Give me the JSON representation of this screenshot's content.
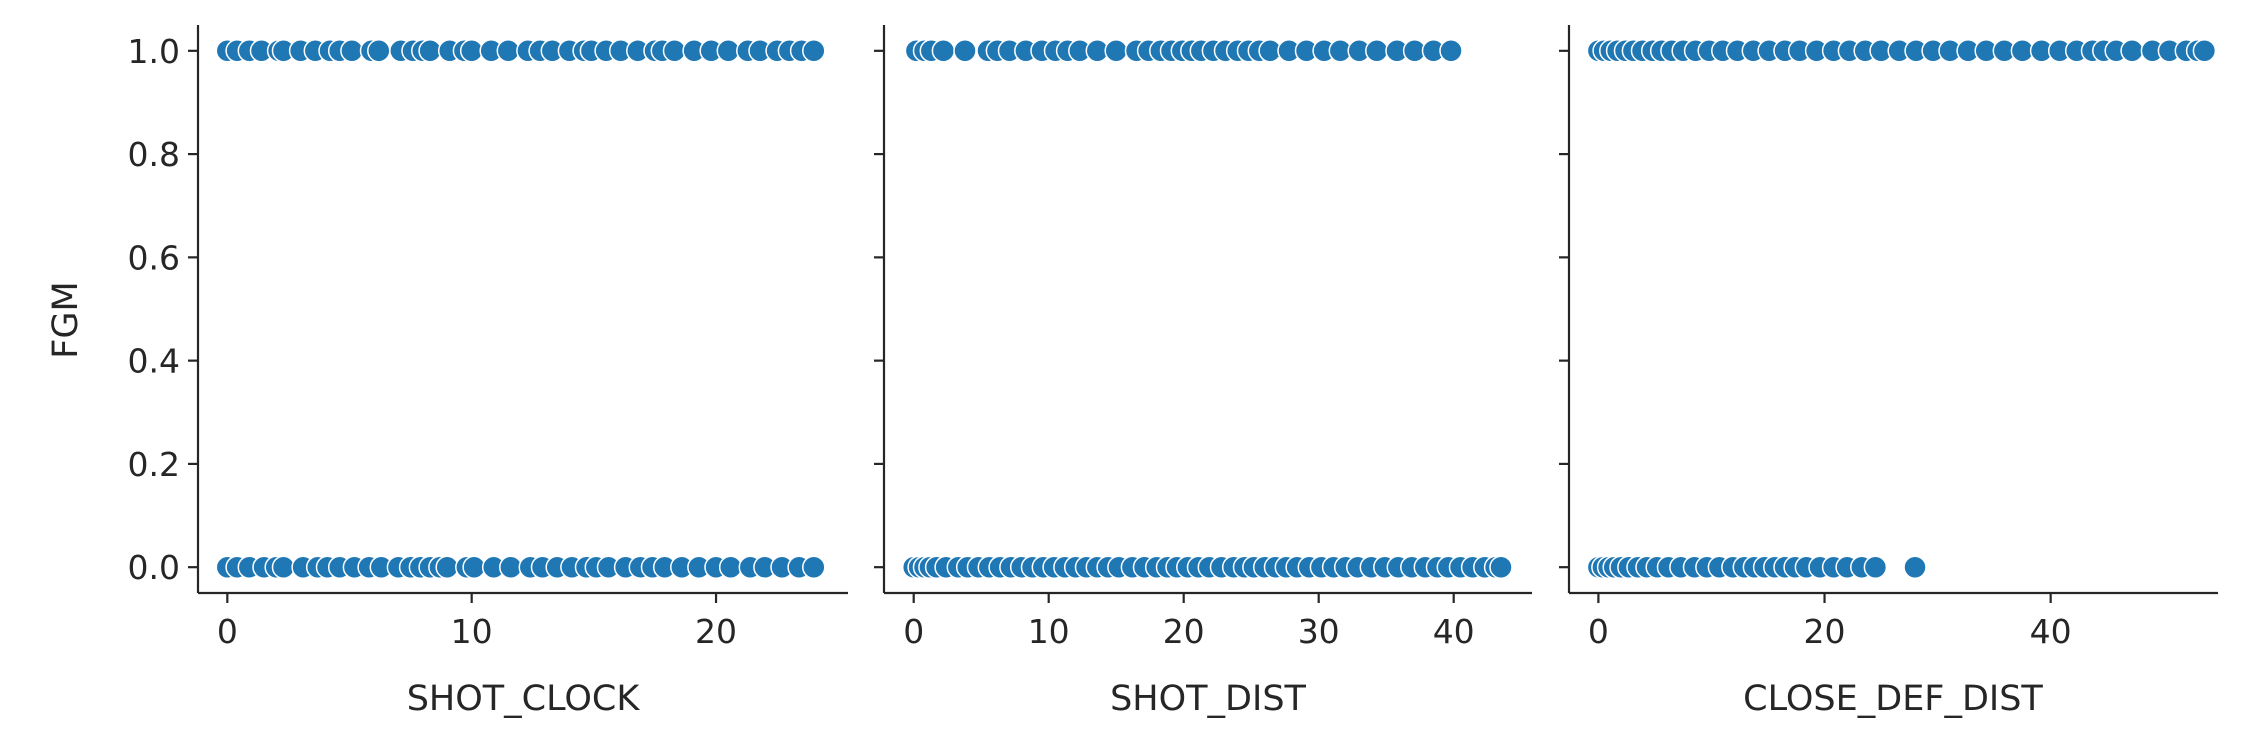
{
  "chart_data": [
    {
      "type": "scatter",
      "xlabel": "SHOT_CLOCK",
      "ylabel": "FGM",
      "xlim": [
        -1.2,
        25.4
      ],
      "ylim": [
        -0.05,
        1.05
      ],
      "xticks": [
        0,
        10,
        20
      ],
      "yticks": [
        0.0,
        0.2,
        0.4,
        0.6,
        0.8,
        1.0
      ],
      "ytick_labels": [
        "0.0",
        "0.2",
        "0.4",
        "0.6",
        "0.8",
        "1.0"
      ],
      "grid": false,
      "color": "#1f77b4",
      "points": {
        "made": [
          0.0,
          0.4,
          0.9,
          1.4,
          2.1,
          2.3,
          3.0,
          3.6,
          4.2,
          4.6,
          5.1,
          5.9,
          6.2,
          7.1,
          7.6,
          8.0,
          8.3,
          9.1,
          9.7,
          10.0,
          10.8,
          11.5,
          12.3,
          12.8,
          13.3,
          14.0,
          14.6,
          14.9,
          15.5,
          16.1,
          16.8,
          17.5,
          17.8,
          18.3,
          19.1,
          19.8,
          20.5,
          21.3,
          21.8,
          22.5,
          23.0,
          23.5,
          24.0
        ],
        "missed": [
          0.0,
          0.4,
          0.9,
          1.5,
          2.0,
          2.3,
          3.1,
          3.7,
          4.1,
          4.6,
          5.2,
          5.8,
          6.3,
          7.0,
          7.5,
          7.9,
          8.3,
          8.7,
          9.0,
          9.8,
          10.1,
          10.9,
          11.6,
          12.4,
          12.9,
          13.5,
          14.1,
          14.7,
          15.1,
          15.6,
          16.3,
          16.9,
          17.4,
          17.9,
          18.6,
          19.3,
          20.0,
          20.6,
          21.4,
          22.0,
          22.7,
          23.4,
          24.0
        ]
      }
    },
    {
      "type": "scatter",
      "xlabel": "SHOT_DIST",
      "ylabel": "",
      "xlim": [
        -2.2,
        45.8
      ],
      "ylim": [
        -0.05,
        1.05
      ],
      "xticks": [
        0,
        10,
        20,
        30,
        40
      ],
      "grid": false,
      "color": "#1f77b4",
      "points": {
        "made": [
          0.2,
          0.8,
          1.3,
          2.2,
          3.8,
          5.5,
          6.2,
          7.1,
          8.3,
          9.5,
          10.5,
          11.4,
          12.3,
          13.6,
          15.0,
          16.5,
          17.4,
          18.3,
          19.1,
          19.9,
          20.6,
          21.3,
          22.2,
          23.1,
          24.0,
          24.8,
          25.6,
          26.4,
          27.8,
          29.1,
          30.4,
          31.6,
          33.0,
          34.3,
          35.8,
          37.1,
          38.5,
          39.8
        ],
        "missed": [
          0.0,
          0.4,
          0.8,
          1.2,
          1.7,
          2.4,
          3.3,
          4.0,
          4.8,
          5.6,
          6.4,
          7.2,
          8.0,
          8.8,
          9.6,
          10.4,
          11.2,
          12.0,
          12.8,
          13.6,
          14.4,
          15.2,
          16.2,
          17.1,
          18.0,
          18.8,
          19.5,
          20.3,
          21.1,
          21.9,
          22.8,
          23.7,
          24.5,
          25.2,
          26.0,
          26.8,
          27.6,
          28.4,
          29.3,
          30.2,
          31.1,
          32.0,
          32.9,
          33.9,
          34.9,
          35.9,
          36.9,
          37.9,
          38.8,
          39.6,
          40.5,
          41.4,
          42.3,
          43.1,
          43.5
        ]
      }
    },
    {
      "type": "scatter",
      "xlabel": "CLOSE_DEF_DIST",
      "ylabel": "",
      "xlim": [
        -2.6,
        54.8
      ],
      "ylim": [
        -0.05,
        1.05
      ],
      "xticks": [
        0,
        20,
        40
      ],
      "grid": false,
      "color": "#1f77b4",
      "points": {
        "made": [
          0.0,
          0.5,
          1.1,
          1.7,
          2.4,
          3.1,
          3.9,
          4.8,
          5.6,
          6.5,
          7.5,
          8.6,
          9.8,
          11.0,
          12.3,
          13.7,
          15.1,
          16.5,
          17.8,
          19.3,
          20.8,
          22.2,
          23.6,
          25.0,
          26.6,
          28.1,
          29.6,
          31.1,
          32.7,
          34.3,
          35.9,
          37.5,
          39.2,
          40.8,
          42.3,
          43.7,
          44.7,
          45.8,
          47.2,
          49.0,
          50.5,
          52.0,
          53.0,
          53.6
        ],
        "missed": [
          0.0,
          0.4,
          0.9,
          1.4,
          2.0,
          2.7,
          3.5,
          4.3,
          5.2,
          6.2,
          7.3,
          8.5,
          9.6,
          10.7,
          11.9,
          12.9,
          13.8,
          14.7,
          15.6,
          16.5,
          17.4,
          18.4,
          19.6,
          20.8,
          22.0,
          23.3,
          24.5,
          28.0
        ]
      }
    }
  ]
}
